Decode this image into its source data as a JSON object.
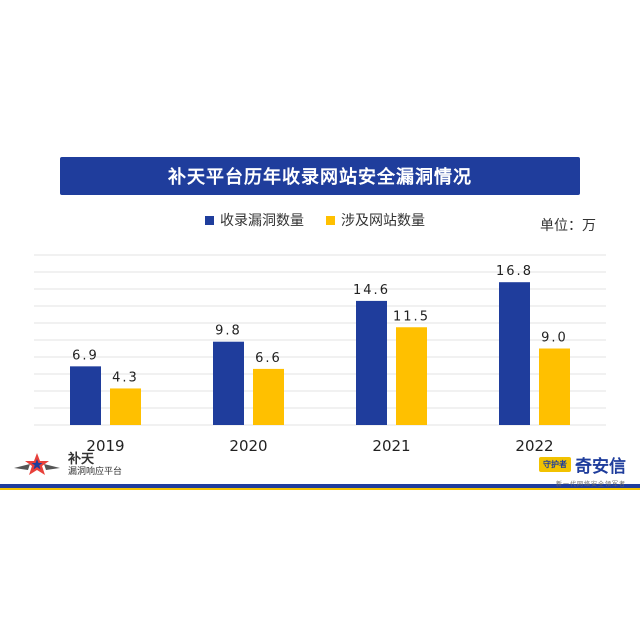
{
  "colors": {
    "series1": "#1f3d9c",
    "series2": "#ffc000",
    "grid": "#e3e3e3",
    "title_bg": "#1f3d9c"
  },
  "chart_data": {
    "type": "bar",
    "title": "补天平台历年收录网站安全漏洞情况",
    "unit_label": "单位：万",
    "categories": [
      "2019",
      "2020",
      "2021",
      "2022"
    ],
    "series": [
      {
        "name": "收录漏洞数量",
        "values": [
          6.9,
          9.8,
          14.6,
          16.8
        ],
        "labels": [
          "6.9",
          "9.8",
          "14.6",
          "16.8"
        ]
      },
      {
        "name": "涉及网站数量",
        "values": [
          4.3,
          6.6,
          11.5,
          9.0
        ],
        "labels": [
          "4.3",
          "6.6",
          "11.5",
          "9.0"
        ]
      }
    ],
    "ylim": [
      0,
      20
    ],
    "grid": true,
    "legend": "top-center"
  },
  "logos": {
    "left_name": "补天",
    "left_sub": "漏洞响应平台",
    "right_badge": "守护者",
    "right_name": "奇安信",
    "right_slogan": "新一代网络安全领军者"
  }
}
